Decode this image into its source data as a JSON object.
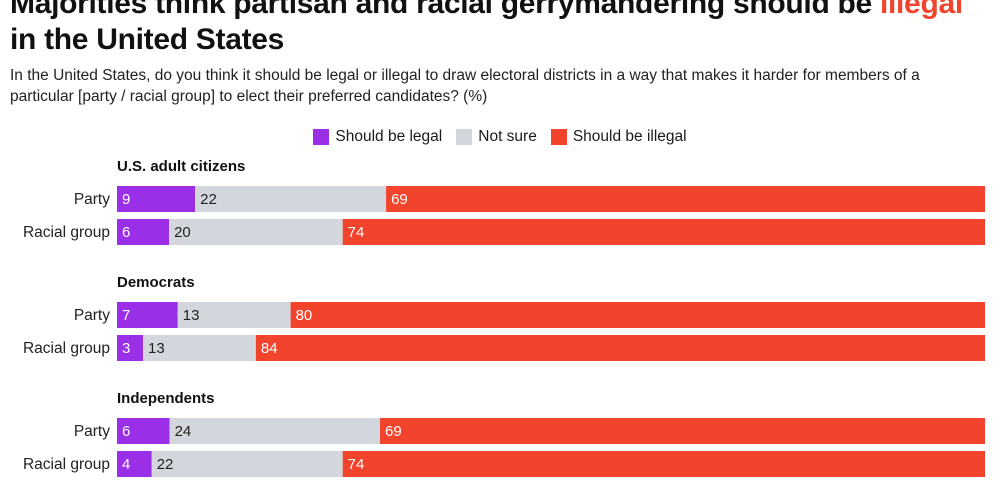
{
  "title": {
    "prefix": "Majorities think partisan and racial gerrymandering should be ",
    "highlight": "illegal",
    "line2": "in the United States"
  },
  "subtitle": "In the United States, do you think it should be legal or illegal to draw electoral districts in a way that makes it harder for members of a particular [party / racial group] to elect their preferred candidates? (%)",
  "colors": {
    "legal": "#9b2fe8",
    "not_sure": "#d4d6de",
    "illegal": "#f2442c",
    "text_dark": "#222222",
    "text_light": "#ffffff"
  },
  "chart_data": {
    "type": "bar",
    "orientation": "horizontal",
    "stacked": true,
    "normalized": true,
    "title": "Majorities think partisan and racial gerrymandering should be illegal in the United States",
    "unit": "%",
    "legend_position": "top-center",
    "series": [
      {
        "key": "legal",
        "name": "Should be legal"
      },
      {
        "key": "not_sure",
        "name": "Not sure"
      },
      {
        "key": "illegal",
        "name": "Should be illegal"
      }
    ],
    "groups": [
      {
        "name": "U.S. adult citizens",
        "rows": [
          {
            "label": "Party",
            "values": [
              9,
              22,
              69
            ]
          },
          {
            "label": "Racial group",
            "values": [
              6,
              20,
              74
            ]
          }
        ]
      },
      {
        "name": "Democrats",
        "rows": [
          {
            "label": "Party",
            "values": [
              7,
              13,
              80
            ]
          },
          {
            "label": "Racial group",
            "values": [
              3,
              13,
              84
            ]
          }
        ]
      },
      {
        "name": "Independents",
        "rows": [
          {
            "label": "Party",
            "values": [
              6,
              24,
              69
            ]
          },
          {
            "label": "Racial group",
            "values": [
              4,
              22,
              74
            ]
          }
        ]
      }
    ]
  }
}
